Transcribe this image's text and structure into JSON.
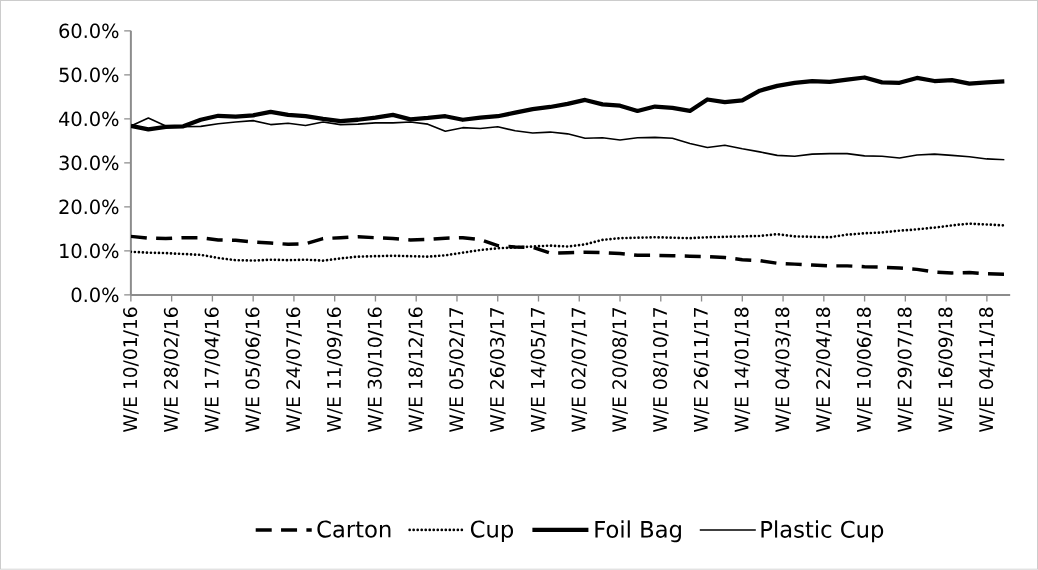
{
  "chart_data": {
    "type": "line",
    "x": [
      "2016-01-10",
      "2016-01-31",
      "2016-02-21",
      "2016-03-13",
      "2016-04-03",
      "2016-04-24",
      "2016-05-15",
      "2016-06-05",
      "2016-06-26",
      "2016-07-17",
      "2016-08-07",
      "2016-08-28",
      "2016-09-18",
      "2016-10-09",
      "2016-10-30",
      "2016-11-20",
      "2016-12-11",
      "2017-01-01",
      "2017-01-22",
      "2017-02-12",
      "2017-03-05",
      "2017-03-26",
      "2017-04-16",
      "2017-05-07",
      "2017-05-28",
      "2017-06-18",
      "2017-07-09",
      "2017-07-30",
      "2017-08-20",
      "2017-09-10",
      "2017-10-01",
      "2017-10-22",
      "2017-11-12",
      "2017-12-03",
      "2017-12-24",
      "2018-01-14",
      "2018-02-04",
      "2018-02-25",
      "2018-03-18",
      "2018-04-08",
      "2018-04-29",
      "2018-05-20",
      "2018-06-10",
      "2018-07-01",
      "2018-07-22",
      "2018-08-12",
      "2018-09-02",
      "2018-09-23",
      "2018-10-14",
      "2018-11-04",
      "2018-11-25"
    ],
    "series": [
      {
        "name": "Carton",
        "color": "#000000",
        "line_style": "dashed",
        "values": [
          13.3,
          12.9,
          12.8,
          13.0,
          13.0,
          12.5,
          12.4,
          12.0,
          11.8,
          11.5,
          11.6,
          12.8,
          13.0,
          13.2,
          13.0,
          12.8,
          12.5,
          12.6,
          12.9,
          13.0,
          12.6,
          11.2,
          10.9,
          10.8,
          9.5,
          9.6,
          9.7,
          9.6,
          9.4,
          9.0,
          9.0,
          8.9,
          8.8,
          8.7,
          8.5,
          8.0,
          7.8,
          7.2,
          7.0,
          6.8,
          6.6,
          6.6,
          6.4,
          6.3,
          6.1,
          5.8,
          5.2,
          5.0,
          5.1,
          4.8,
          4.7
        ]
      },
      {
        "name": "Cup",
        "color": "#000000",
        "line_style": "dotted",
        "values": [
          9.8,
          9.6,
          9.5,
          9.3,
          9.1,
          8.4,
          7.9,
          7.8,
          8.0,
          7.9,
          8.0,
          7.8,
          8.3,
          8.7,
          8.8,
          8.9,
          8.8,
          8.7,
          9.0,
          9.6,
          10.2,
          10.6,
          10.8,
          11.0,
          11.2,
          11.0,
          11.5,
          12.5,
          12.9,
          13.0,
          13.1,
          13.0,
          12.9,
          13.1,
          13.2,
          13.3,
          13.4,
          13.8,
          13.3,
          13.2,
          13.1,
          13.7,
          14.0,
          14.2,
          14.6,
          14.9,
          15.3,
          15.8,
          16.2,
          16.0,
          15.8
        ]
      },
      {
        "name": "Foil Bag",
        "color": "#000000",
        "line_style": "solid",
        "values": [
          38.4,
          37.6,
          38.2,
          38.3,
          39.8,
          40.7,
          40.5,
          40.8,
          41.6,
          40.9,
          40.6,
          40.0,
          39.5,
          39.8,
          40.3,
          40.9,
          39.9,
          40.2,
          40.6,
          39.8,
          40.3,
          40.6,
          41.4,
          42.2,
          42.7,
          43.4,
          44.3,
          43.3,
          43.0,
          41.8,
          42.8,
          42.5,
          41.8,
          44.4,
          43.8,
          44.2,
          46.4,
          47.5,
          48.2,
          48.6,
          48.4,
          48.9,
          49.4,
          48.3,
          48.2,
          49.3,
          48.6,
          48.8,
          48.0,
          48.3,
          48.5
        ]
      },
      {
        "name": "Plastic Cup",
        "color": "#000000",
        "line_style": "solid",
        "values": [
          38.4,
          40.2,
          38.4,
          38.2,
          38.3,
          38.9,
          39.3,
          39.6,
          38.7,
          39.0,
          38.5,
          39.3,
          38.7,
          38.8,
          39.1,
          39.1,
          39.3,
          38.8,
          37.2,
          38.0,
          37.8,
          38.2,
          37.3,
          36.8,
          37.0,
          36.6,
          35.6,
          35.7,
          35.2,
          35.7,
          35.8,
          35.6,
          34.4,
          33.5,
          34.0,
          33.2,
          32.5,
          31.7,
          31.5,
          32.0,
          32.1,
          32.1,
          31.6,
          31.5,
          31.1,
          31.8,
          32.0,
          31.7,
          31.4,
          30.9,
          30.7
        ]
      }
    ],
    "xlim": [
      "2016-01-10",
      "2018-12-02"
    ],
    "xticks": [
      {
        "value": "2016-01-10",
        "label": "W/E 10/01/16"
      },
      {
        "value": "2016-02-28",
        "label": "W/E 28/02/16"
      },
      {
        "value": "2016-04-17",
        "label": "W/E 17/04/16"
      },
      {
        "value": "2016-06-05",
        "label": "W/E 05/06/16"
      },
      {
        "value": "2016-07-24",
        "label": "W/E 24/07/16"
      },
      {
        "value": "2016-09-11",
        "label": "W/E 11/09/16"
      },
      {
        "value": "2016-10-30",
        "label": "W/E 30/10/16"
      },
      {
        "value": "2016-12-18",
        "label": "W/E 18/12/16"
      },
      {
        "value": "2017-02-05",
        "label": "W/E 05/02/17"
      },
      {
        "value": "2017-03-26",
        "label": "W/E 26/03/17"
      },
      {
        "value": "2017-05-14",
        "label": "W/E 14/05/17"
      },
      {
        "value": "2017-07-02",
        "label": "W/E 02/07/17"
      },
      {
        "value": "2017-08-20",
        "label": "W/E 20/08/17"
      },
      {
        "value": "2017-10-08",
        "label": "W/E 08/10/17"
      },
      {
        "value": "2017-11-26",
        "label": "W/E 26/11/17"
      },
      {
        "value": "2018-01-14",
        "label": "W/E 14/01/18"
      },
      {
        "value": "2018-03-04",
        "label": "W/E 04/03/18"
      },
      {
        "value": "2018-04-22",
        "label": "W/E 22/04/18"
      },
      {
        "value": "2018-06-10",
        "label": "W/E 10/06/18"
      },
      {
        "value": "2018-07-29",
        "label": "W/E 29/07/18"
      },
      {
        "value": "2018-09-16",
        "label": "W/E 16/09/18"
      },
      {
        "value": "2018-11-04",
        "label": "W/E 04/11/18"
      }
    ],
    "ylim": [
      0,
      60
    ],
    "yticks": [
      {
        "value": 0,
        "label": "0.0%"
      },
      {
        "value": 10,
        "label": "10.0%"
      },
      {
        "value": 20,
        "label": "20.0%"
      },
      {
        "value": 30,
        "label": "30.0%"
      },
      {
        "value": 40,
        "label": "40.0%"
      },
      {
        "value": 50,
        "label": "50.0%"
      },
      {
        "value": 60,
        "label": "60.0%"
      }
    ],
    "grid": false,
    "legend": "bottom",
    "marker": "none"
  }
}
